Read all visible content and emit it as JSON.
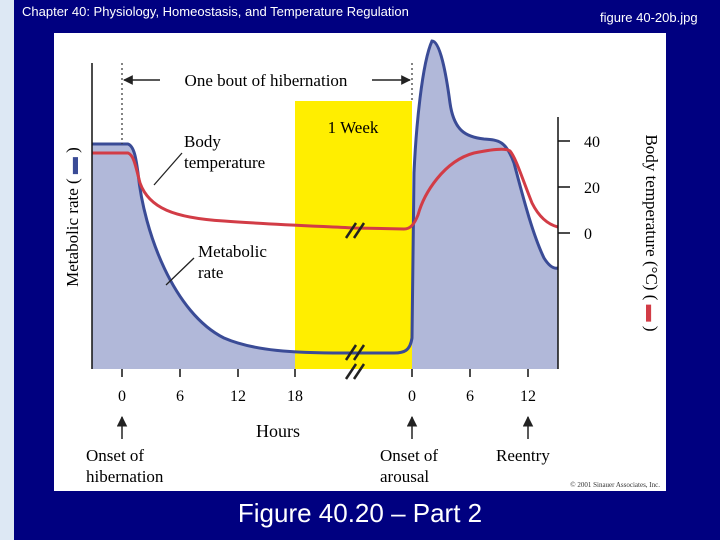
{
  "header": {
    "title": "Chapter 40: Physiology, Homeostasis, and Temperature Regulation",
    "filename": "figure 40-20b.jpg"
  },
  "caption": "Figure 40.20 – Part 2",
  "chart_data": {
    "type": "line",
    "xlabel": "Hours",
    "x_ticks": [
      "0",
      "6",
      "12",
      "18",
      "0",
      "6",
      "12"
    ],
    "left_axis_label": "Metabolic rate (",
    "right_axis_label": "Body temperature (°C) (",
    "right_ticks": [
      "40",
      "20",
      "0"
    ],
    "bout_label": "One bout of hibernation",
    "week_label": "1 Week",
    "series": [
      {
        "name": "Body temperature",
        "color": "#d23c46"
      },
      {
        "name": "Metabolic rate",
        "color": "#3a4b96",
        "fill": "#b1b8d9"
      }
    ],
    "events": [
      {
        "label_lines": [
          "Onset of",
          "hibernation"
        ]
      },
      {
        "label_lines": [
          "Onset of",
          "arousal"
        ]
      },
      {
        "label_lines": [
          "Reentry"
        ]
      }
    ],
    "copyright": "© 2001 Sinauer Associates, Inc."
  }
}
